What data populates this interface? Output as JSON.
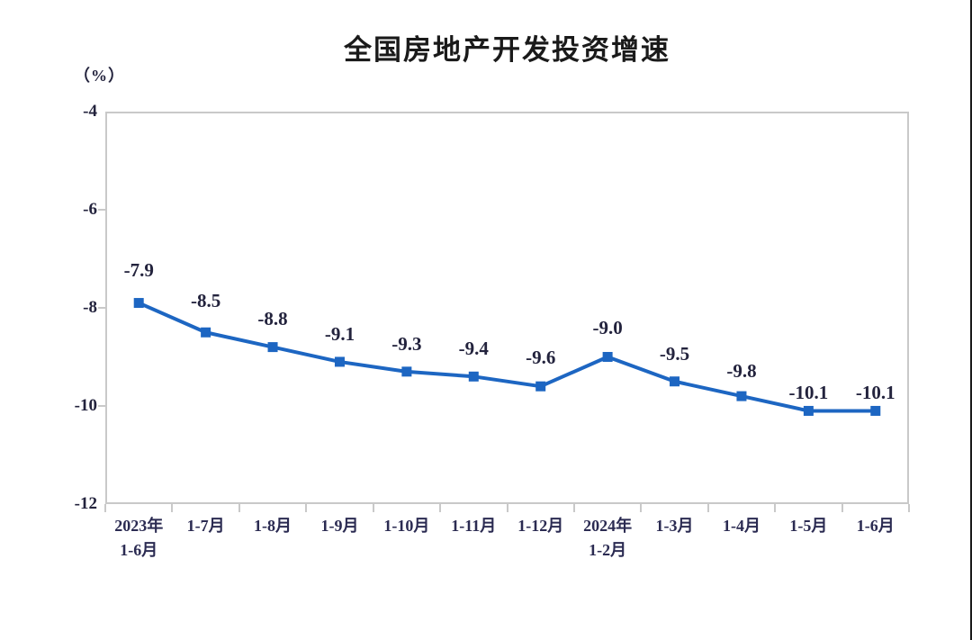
{
  "page": {
    "background": "#ffffff",
    "right_edge_color": "#1a1a1a"
  },
  "chart_data": {
    "type": "line",
    "title": "全国房地产开发投资增速",
    "unit_label": "（%）",
    "xlabel": "",
    "ylabel": "(%)",
    "categories": [
      [
        "2023年",
        "1-6月"
      ],
      [
        "1-7月"
      ],
      [
        "1-8月"
      ],
      [
        "1-9月"
      ],
      [
        "1-10月"
      ],
      [
        "1-11月"
      ],
      [
        "1-12月"
      ],
      [
        "2024年",
        "1-2月"
      ],
      [
        "1-3月"
      ],
      [
        "1-4月"
      ],
      [
        "1-5月"
      ],
      [
        "1-6月"
      ]
    ],
    "values": [
      -7.9,
      -8.5,
      -8.8,
      -9.1,
      -9.3,
      -9.4,
      -9.6,
      -9.0,
      -9.5,
      -9.8,
      -10.1,
      -10.1
    ],
    "data_labels": [
      "-7.9",
      "-8.5",
      "-8.8",
      "-9.1",
      "-9.3",
      "-9.4",
      "-9.6",
      "-9.0",
      "-9.5",
      "-9.8",
      "-10.1",
      "-10.1"
    ],
    "y_ticks": [
      "-4",
      "-6",
      "-8",
      "-10",
      "-12"
    ],
    "ylim": [
      -12,
      -4
    ],
    "grid": false,
    "legend": "none",
    "marker_style": "square",
    "colors": {
      "line": "#1d66c2",
      "marker": "#1d66c2",
      "axis": "#c9c9c9",
      "title_text": "#1a1a1a",
      "label_text": "#23233d"
    },
    "layout": {
      "label_dy": [
        -49,
        -47,
        -44,
        -43,
        -43,
        -43,
        -44,
        -45,
        -43,
        -40,
        -32,
        -32
      ]
    }
  }
}
